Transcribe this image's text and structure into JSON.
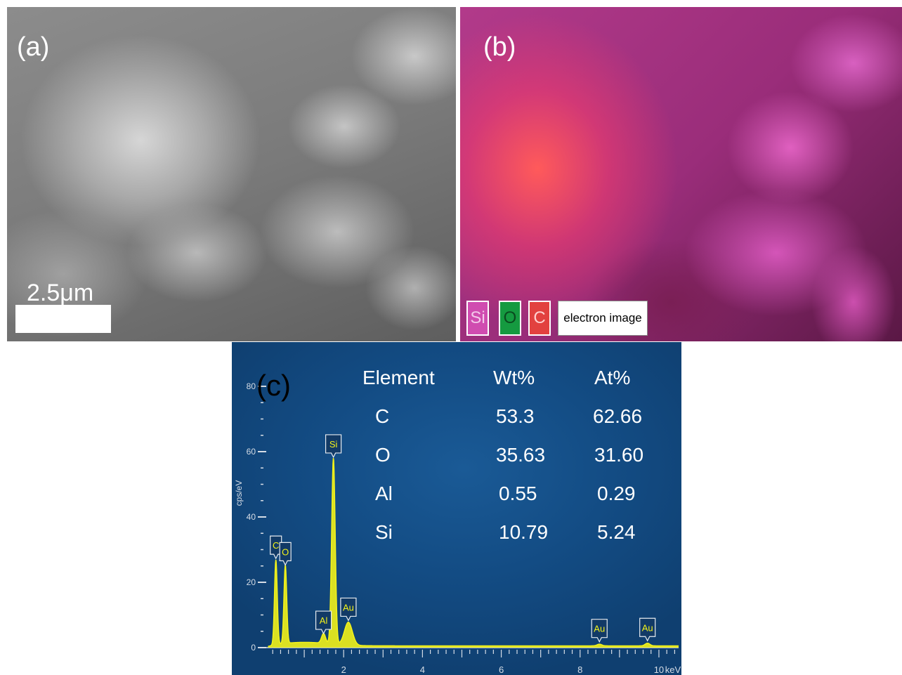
{
  "panels": {
    "a": {
      "label": "(a)",
      "scale_bar": "2.5μm"
    },
    "b": {
      "label": "(b)",
      "legend": [
        {
          "text": "Si",
          "color": "#d04cb0"
        },
        {
          "text": "O",
          "color": "#159a40"
        },
        {
          "text": "C",
          "color": "#e2413f"
        },
        {
          "text": "electron image",
          "color": "#ffffff"
        }
      ]
    },
    "c": {
      "label": "(c)",
      "table": {
        "headers": [
          "Element",
          "Wt%",
          "At%"
        ],
        "rows": [
          [
            "C",
            "53.3",
            "62.66"
          ],
          [
            "O",
            "35.63",
            "31.60"
          ],
          [
            "Al",
            "0.55",
            "0.29"
          ],
          [
            "Si",
            "10.79",
            "5.24"
          ]
        ]
      }
    }
  },
  "chart_data": {
    "type": "line",
    "xlabel": "keV",
    "ylabel": "cps/eV",
    "xlim": [
      0,
      10.5
    ],
    "ylim": [
      0,
      80
    ],
    "x_ticks": [
      "2",
      "4",
      "6",
      "8",
      "10"
    ],
    "y_ticks": [
      "0",
      "20",
      "40",
      "60",
      "80"
    ],
    "line_color": "#f2f21a",
    "peaks": [
      {
        "label": "C",
        "x": 0.28,
        "y": 26
      },
      {
        "label": "O",
        "x": 0.52,
        "y": 24
      },
      {
        "label": "Al",
        "x": 1.49,
        "y": 3
      },
      {
        "label": "Si",
        "x": 1.74,
        "y": 57
      },
      {
        "label": "Au",
        "x": 2.12,
        "y": 7
      },
      {
        "label": "Au",
        "x": 8.49,
        "y": 0.5
      },
      {
        "label": "Au",
        "x": 9.71,
        "y": 0.8
      }
    ]
  }
}
